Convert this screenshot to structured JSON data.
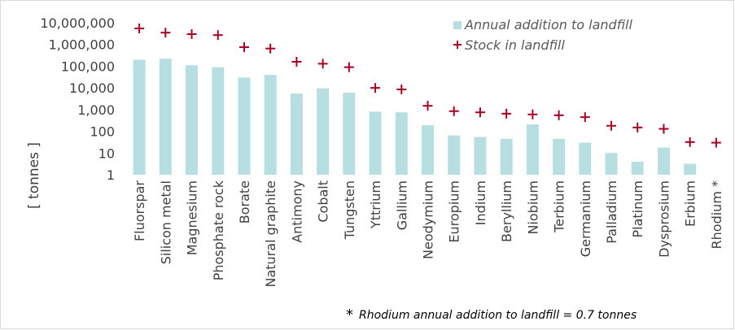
{
  "chart_data": {
    "type": "bar",
    "title": "",
    "xlabel": "",
    "ylabel": "[ tonnes ]",
    "y_scale": "log",
    "ylim": [
      1,
      10000000
    ],
    "y_ticks": [
      "1",
      "10",
      "100",
      "1,000",
      "10,000",
      "100,000",
      "1,000,000",
      "10,000,000"
    ],
    "grid": false,
    "legend_position": "top-right",
    "categories": [
      "Fluorspar",
      "Silicon metal",
      "Magnesium",
      "Phosphate rock",
      "Borate",
      "Natural graphite",
      "Antimony",
      "Cobalt",
      "Tungsten",
      "Yttrium",
      "Gallium",
      "Neodymium",
      "Europium",
      "Indium",
      "Beryllium",
      "Niobium",
      "Terbium",
      "Germanium",
      "Palladium",
      "Platinum",
      "Dysprosium",
      "Erbium",
      "Rhodium *"
    ],
    "series": [
      {
        "name": "Annual addition to landfill",
        "kind": "bar",
        "color": "#b7dfe1",
        "values": [
          200000,
          220000,
          110000,
          90000,
          30000,
          40000,
          5500,
          9500,
          6000,
          800,
          750,
          190,
          65,
          55,
          45,
          210,
          45,
          30,
          10,
          4,
          18,
          3.2,
          0.7
        ]
      },
      {
        "name": "Stock in landfill",
        "kind": "marker",
        "marker": "+",
        "color": "#a50021",
        "values": [
          5500000,
          3500000,
          3000000,
          2700000,
          750000,
          650000,
          160000,
          130000,
          90000,
          10000,
          8500,
          1500,
          850,
          750,
          650,
          600,
          550,
          450,
          180,
          150,
          130,
          32,
          30
        ]
      }
    ],
    "annotation": {
      "star": "*",
      "text": "Rhodium annual addition to landfill = 0.7 tonnes"
    }
  }
}
